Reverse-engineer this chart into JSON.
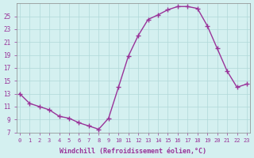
{
  "x": [
    0,
    1,
    2,
    3,
    4,
    5,
    6,
    7,
    8,
    9,
    10,
    11,
    12,
    13,
    14,
    15,
    16,
    17,
    18,
    19,
    20,
    21,
    22,
    23
  ],
  "y": [
    13,
    11.5,
    11,
    10.5,
    9.5,
    9.2,
    8.5,
    8.0,
    7.5,
    9.2,
    14.0,
    18.8,
    22.0,
    24.5,
    25.2,
    26.0,
    26.5,
    26.5,
    26.2,
    23.5,
    20.0,
    16.5,
    14.0,
    14.5
  ],
  "line_color": "#993399",
  "marker": "P",
  "bg_color": "#d4f0f0",
  "grid_color": "#b0d8d8",
  "tick_label_color": "#993399",
  "xlabel": "Windchill (Refroidissement éolien,°C)",
  "xlabel_color": "#993399",
  "ylim": [
    7,
    27
  ],
  "xlim": [
    -0.3,
    23.3
  ],
  "yticks": [
    7,
    9,
    11,
    13,
    15,
    17,
    19,
    21,
    23,
    25
  ],
  "xticks": [
    0,
    1,
    2,
    3,
    4,
    5,
    6,
    7,
    8,
    9,
    10,
    11,
    12,
    13,
    14,
    15,
    16,
    17,
    18,
    19,
    20,
    21,
    22,
    23
  ]
}
